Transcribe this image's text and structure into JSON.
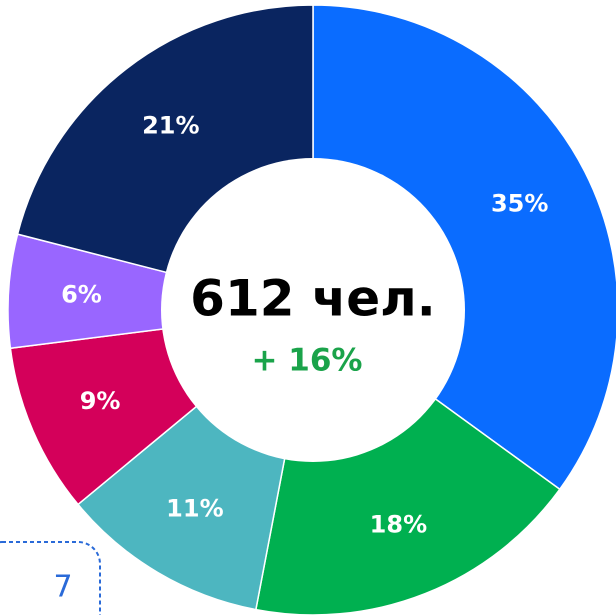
{
  "chart_data": {
    "type": "donut",
    "center_label": "612 чел.",
    "center_sublabel": "+ 16%",
    "values": [
      35,
      18,
      11,
      9,
      6,
      21
    ],
    "value_labels": [
      "35%",
      "18%",
      "11%",
      "9%",
      "6%",
      "21%"
    ],
    "colors": [
      "#0a6cff",
      "#00b050",
      "#4db6c0",
      "#d4005a",
      "#9966ff",
      "#0a2560"
    ]
  },
  "badge": "7"
}
